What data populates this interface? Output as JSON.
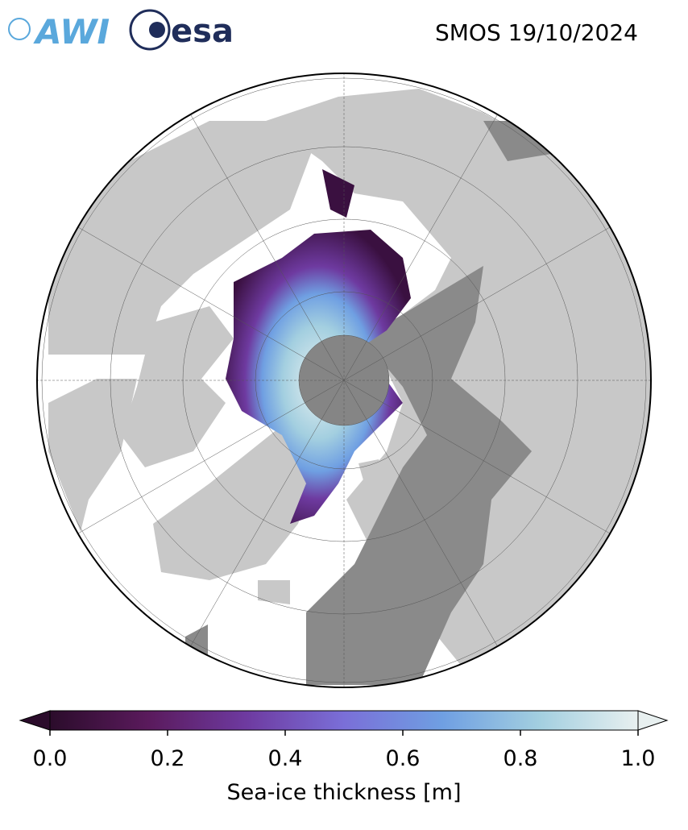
{
  "header": {
    "logos": [
      "AWI",
      "esa"
    ],
    "title": "SMOS 19/10/2024"
  },
  "colorbar": {
    "label": "Sea-ice thickness [m]",
    "lim": [
      0,
      1
    ],
    "ticks": [
      {
        "value": 0,
        "label": "0.0"
      },
      {
        "value": 0.2,
        "label": "0.2"
      },
      {
        "value": 0.4,
        "label": "0.4"
      },
      {
        "value": 0.6,
        "label": "0.6"
      },
      {
        "value": 0.8,
        "label": "0.8"
      },
      {
        "value": 1,
        "label": "1.0"
      }
    ],
    "colors": [
      "#2b0c2b",
      "#5a1a5c",
      "#6e3aa0",
      "#7a6fd8",
      "#6f9fe2",
      "#a3cfe0",
      "#e8f0f0"
    ]
  }
}
